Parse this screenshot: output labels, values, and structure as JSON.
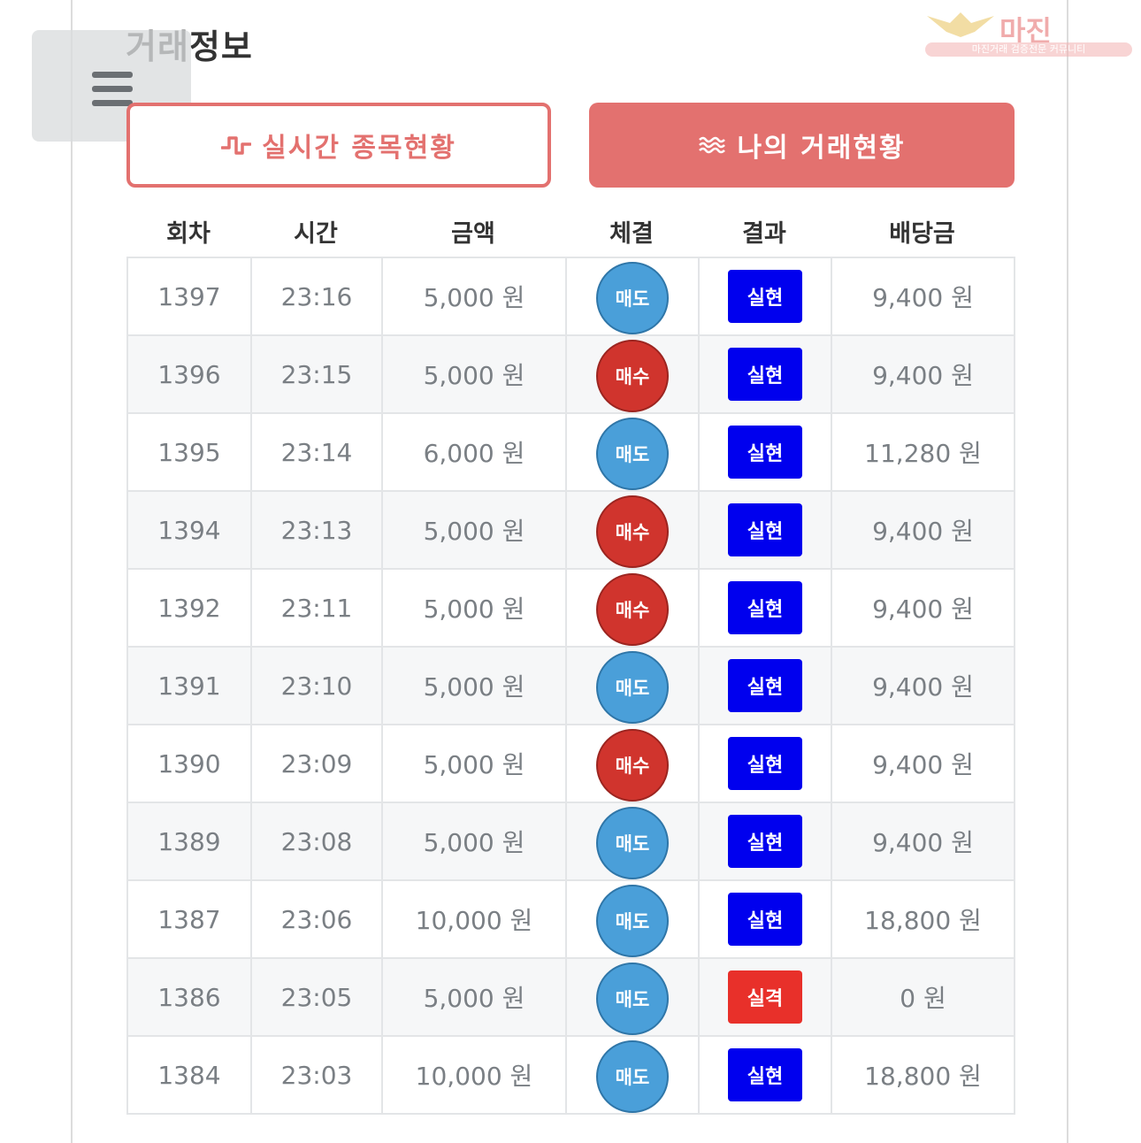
{
  "page": {
    "title": "거래정보"
  },
  "watermark": {
    "brand": "마진",
    "tagline": "마진거래 검증전문 커뮤니티"
  },
  "tabs": [
    {
      "label": "실시간 종목현황",
      "icon": "pulse-icon",
      "active": false
    },
    {
      "label": "나의 거래현황",
      "icon": "waves-icon",
      "active": true
    }
  ],
  "table": {
    "headers": [
      "회차",
      "시간",
      "금액",
      "체결",
      "결과",
      "배당금"
    ],
    "rows": [
      {
        "round": "1397",
        "time": "23:16",
        "amount": "5,000 원",
        "trade": "매도",
        "result": "실현",
        "payout": "9,400 원"
      },
      {
        "round": "1396",
        "time": "23:15",
        "amount": "5,000 원",
        "trade": "매수",
        "result": "실현",
        "payout": "9,400 원"
      },
      {
        "round": "1395",
        "time": "23:14",
        "amount": "6,000 원",
        "trade": "매도",
        "result": "실현",
        "payout": "11,280 원"
      },
      {
        "round": "1394",
        "time": "23:13",
        "amount": "5,000 원",
        "trade": "매수",
        "result": "실현",
        "payout": "9,400 원"
      },
      {
        "round": "1392",
        "time": "23:11",
        "amount": "5,000 원",
        "trade": "매수",
        "result": "실현",
        "payout": "9,400 원"
      },
      {
        "round": "1391",
        "time": "23:10",
        "amount": "5,000 원",
        "trade": "매도",
        "result": "실현",
        "payout": "9,400 원"
      },
      {
        "round": "1390",
        "time": "23:09",
        "amount": "5,000 원",
        "trade": "매수",
        "result": "실현",
        "payout": "9,400 원"
      },
      {
        "round": "1389",
        "time": "23:08",
        "amount": "5,000 원",
        "trade": "매도",
        "result": "실현",
        "payout": "9,400 원"
      },
      {
        "round": "1387",
        "time": "23:06",
        "amount": "10,000 원",
        "trade": "매도",
        "result": "실현",
        "payout": "18,800 원"
      },
      {
        "round": "1386",
        "time": "23:05",
        "amount": "5,000 원",
        "trade": "매도",
        "result": "실격",
        "payout": "0 원"
      },
      {
        "round": "1384",
        "time": "23:03",
        "amount": "10,000 원",
        "trade": "매도",
        "result": "실현",
        "payout": "18,800 원"
      }
    ]
  },
  "colors": {
    "accent": "#e3716f",
    "sell": "#4a9fd9",
    "buy": "#d0342d",
    "result_hit": "#0000ee",
    "result_miss": "#e8302a"
  }
}
